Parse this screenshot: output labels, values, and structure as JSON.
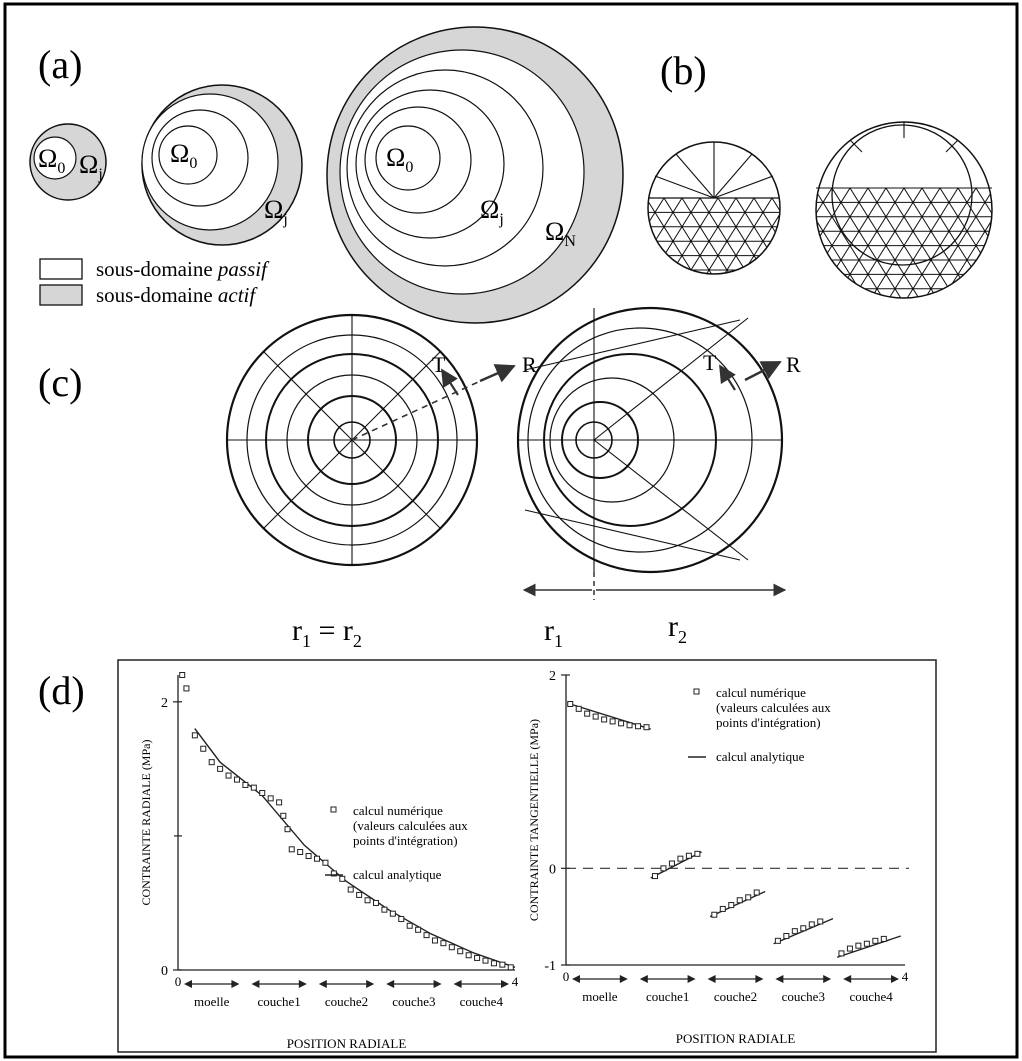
{
  "panels": {
    "a": "(a)",
    "b": "(b)",
    "c": "(c)",
    "d": "(d)"
  },
  "panel_a": {
    "omega0": "Ω",
    "omega0_sub": "0",
    "omegaj": "Ω",
    "omegaj_sub": "j",
    "omegaN": "Ω",
    "omegaN_sub": "N",
    "legend_passive_prefix": "sous-domaine ",
    "legend_passive_emph": "passif",
    "legend_active_prefix": "sous-domaine ",
    "legend_active_emph": "actif",
    "colors": {
      "active": "#d6d6d6",
      "passive": "#ffffff"
    }
  },
  "panel_c": {
    "T": "T",
    "R": "R",
    "left_eq": "r",
    "left_eq_sub1": "1",
    "left_eq_mid": " = r",
    "left_eq_sub2": "2",
    "r1": "r",
    "r1_sub": "1",
    "r2": "r",
    "r2_sub": "2"
  },
  "chart_data": [
    {
      "type": "scatter",
      "ylabel": "CONTRAINTE RADIALE (MPa)",
      "xlabel": "POSITION RADIALE",
      "ylim": [
        0,
        2.2
      ],
      "xlim": [
        0,
        4
      ],
      "y_ticks": [
        "0",
        "2"
      ],
      "x_ticks": [
        "0",
        "4"
      ],
      "zones": [
        "moelle",
        "couche1",
        "couche2",
        "couche3",
        "couche4"
      ],
      "legend": [
        "calcul numérique",
        "(valeurs calculées aux",
        "points d'intégration)",
        "calcul analytique"
      ],
      "series_numeric": [
        [
          0.05,
          2.2
        ],
        [
          0.1,
          2.1
        ],
        [
          0.2,
          1.75
        ],
        [
          0.3,
          1.65
        ],
        [
          0.4,
          1.55
        ],
        [
          0.5,
          1.5
        ],
        [
          0.6,
          1.45
        ],
        [
          0.7,
          1.42
        ],
        [
          0.8,
          1.38
        ],
        [
          0.9,
          1.36
        ],
        [
          1.0,
          1.32
        ],
        [
          1.1,
          1.28
        ],
        [
          1.2,
          1.25
        ],
        [
          1.25,
          1.15
        ],
        [
          1.3,
          1.05
        ],
        [
          1.35,
          0.9
        ],
        [
          1.45,
          0.88
        ],
        [
          1.55,
          0.85
        ],
        [
          1.65,
          0.83
        ],
        [
          1.75,
          0.8
        ],
        [
          1.85,
          0.72
        ],
        [
          1.95,
          0.68
        ],
        [
          2.05,
          0.6
        ],
        [
          2.15,
          0.56
        ],
        [
          2.25,
          0.52
        ],
        [
          2.35,
          0.5
        ],
        [
          2.45,
          0.45
        ],
        [
          2.55,
          0.42
        ],
        [
          2.65,
          0.38
        ],
        [
          2.75,
          0.33
        ],
        [
          2.85,
          0.3
        ],
        [
          2.95,
          0.26
        ],
        [
          3.05,
          0.22
        ],
        [
          3.15,
          0.2
        ],
        [
          3.25,
          0.17
        ],
        [
          3.35,
          0.14
        ],
        [
          3.45,
          0.11
        ],
        [
          3.55,
          0.09
        ],
        [
          3.65,
          0.07
        ],
        [
          3.75,
          0.05
        ],
        [
          3.85,
          0.04
        ],
        [
          3.95,
          0.02
        ]
      ],
      "series_analytic": [
        [
          0.2,
          1.8
        ],
        [
          0.5,
          1.55
        ],
        [
          1.0,
          1.3
        ],
        [
          1.5,
          0.93
        ],
        [
          2.0,
          0.66
        ],
        [
          2.5,
          0.45
        ],
        [
          3.0,
          0.27
        ],
        [
          3.5,
          0.13
        ],
        [
          4.0,
          0.02
        ]
      ]
    },
    {
      "type": "scatter",
      "ylabel": "CONTRAINTE TANGENTIELLE (MPa)",
      "xlabel": "POSITION RADIALE",
      "ylim": [
        -1,
        2
      ],
      "xlim": [
        0,
        4
      ],
      "y_ticks": [
        "-1",
        "0",
        "2"
      ],
      "x_ticks": [
        "0",
        "4"
      ],
      "zones": [
        "moelle",
        "couche1",
        "couche2",
        "couche3",
        "couche4"
      ],
      "legend": [
        "calcul numérique",
        "(valeurs calculées aux",
        "points d'intégration)",
        "calcul analytique"
      ],
      "series_numeric": [
        [
          0.05,
          1.7
        ],
        [
          0.15,
          1.65
        ],
        [
          0.25,
          1.6
        ],
        [
          0.35,
          1.57
        ],
        [
          0.45,
          1.54
        ],
        [
          0.55,
          1.52
        ],
        [
          0.65,
          1.5
        ],
        [
          0.75,
          1.48
        ],
        [
          0.85,
          1.47
        ],
        [
          0.95,
          1.46
        ],
        [
          1.05,
          -0.08
        ],
        [
          1.15,
          0.0
        ],
        [
          1.25,
          0.05
        ],
        [
          1.35,
          0.1
        ],
        [
          1.45,
          0.13
        ],
        [
          1.55,
          0.15
        ],
        [
          1.75,
          -0.48
        ],
        [
          1.85,
          -0.42
        ],
        [
          1.95,
          -0.38
        ],
        [
          2.05,
          -0.33
        ],
        [
          2.15,
          -0.3
        ],
        [
          2.25,
          -0.25
        ],
        [
          2.5,
          -0.75
        ],
        [
          2.6,
          -0.7
        ],
        [
          2.7,
          -0.65
        ],
        [
          2.8,
          -0.62
        ],
        [
          2.9,
          -0.58
        ],
        [
          3.0,
          -0.55
        ],
        [
          3.25,
          -0.88
        ],
        [
          3.35,
          -0.83
        ],
        [
          3.45,
          -0.8
        ],
        [
          3.55,
          -0.78
        ],
        [
          3.65,
          -0.75
        ],
        [
          3.75,
          -0.73
        ]
      ],
      "series_analytic": [
        [
          [
            0.05,
            1.7
          ],
          [
            1.0,
            1.44
          ]
        ],
        [
          [
            1.0,
            -0.1
          ],
          [
            1.6,
            0.17
          ]
        ],
        [
          [
            1.7,
            -0.5
          ],
          [
            2.35,
            -0.24
          ]
        ],
        [
          [
            2.45,
            -0.78
          ],
          [
            3.15,
            -0.52
          ]
        ],
        [
          [
            3.2,
            -0.92
          ],
          [
            3.95,
            -0.7
          ]
        ]
      ]
    }
  ]
}
